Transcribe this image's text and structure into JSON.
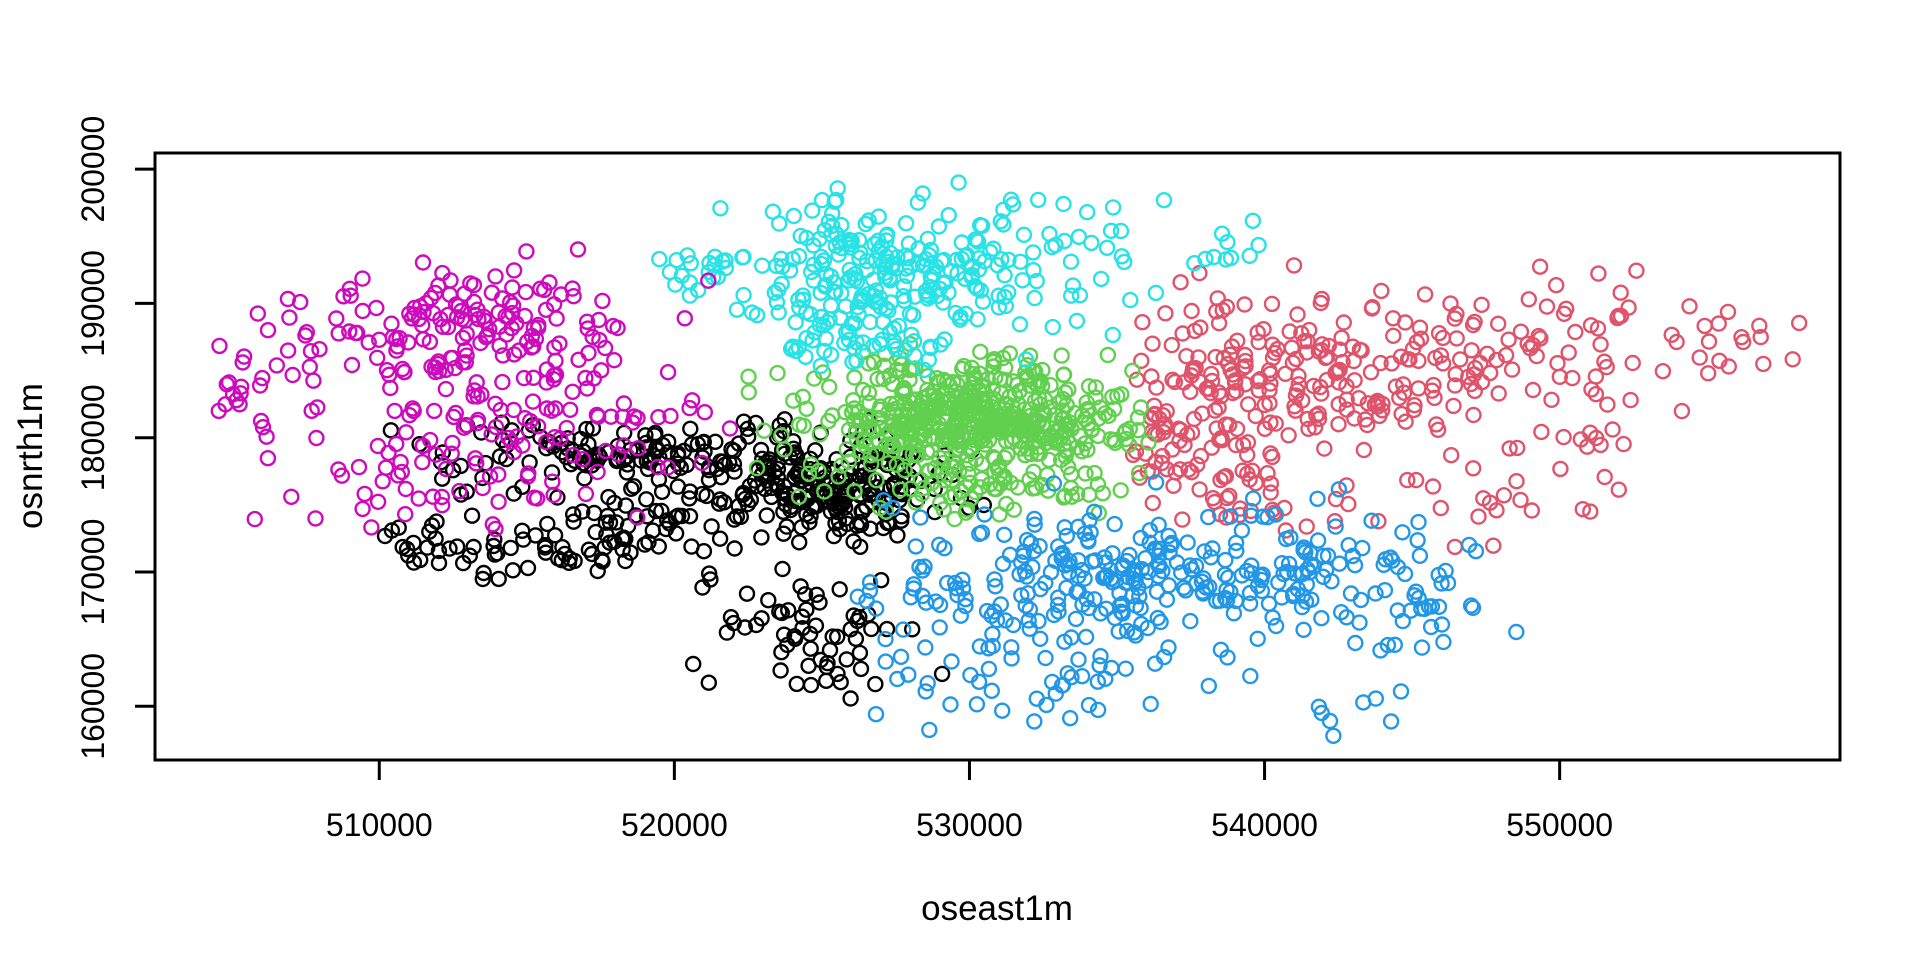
{
  "figure": {
    "title": "",
    "xlabel": "oseast1m",
    "ylabel": "osnrth1m"
  },
  "chart_data": {
    "type": "scatter",
    "title": "",
    "xlabel": "oseast1m",
    "ylabel": "osnrth1m",
    "xlim": [
      502400,
      559500
    ],
    "ylim": [
      156000,
      201200
    ],
    "x_ticks": [
      510000,
      520000,
      530000,
      540000,
      550000
    ],
    "y_ticks": [
      160000,
      170000,
      180000,
      190000,
      200000
    ],
    "grid": false,
    "legend": null,
    "background": "#ffffff",
    "axis_color": "#000000",
    "marker": {
      "shape": "open-circle",
      "radius_px": 7,
      "stroke_px": 2.4
    },
    "seed": 7,
    "clusters": [
      {
        "name": "black",
        "color": "#000000",
        "count": 503,
        "approx_center": [
          521500,
          173500
        ],
        "x_range": [
          509300,
          530500
        ],
        "y_range": [
          159800,
          181500
        ],
        "clamp": {
          "xmin": 509300,
          "xmax": 530500,
          "ymin": 159800,
          "ymax": 181500
        },
        "blobs": [
          {
            "c": [
              519500,
              178800
            ],
            "s": [
              3500,
              1500
            ],
            "n": 140
          },
          {
            "c": [
              525600,
              176400
            ],
            "s": [
              1700,
              2000
            ],
            "n": 185
          },
          {
            "c": [
              515800,
              172300
            ],
            "s": [
              2500,
              1700
            ],
            "n": 70
          },
          {
            "c": [
              520500,
              173600
            ],
            "s": [
              2200,
              1500
            ],
            "n": 40
          },
          {
            "c": [
              524000,
              165800
            ],
            "s": [
              1700,
              2500
            ],
            "n": 60
          },
          {
            "c": [
              511300,
              172800
            ],
            "s": [
              900,
              600
            ],
            "n": 8
          }
        ]
      },
      {
        "name": "red",
        "color": "#DF536B",
        "count": 392,
        "approx_center": [
          543500,
          183500
        ],
        "x_range": [
          535500,
          558400
        ],
        "y_range": [
          171800,
          194500
        ],
        "clamp": {
          "xmin": 535500,
          "xmax": 558400,
          "ymin": 171800,
          "ymax": 194500
        },
        "blobs": [
          {
            "c": [
              537700,
              182200
            ],
            "s": [
              1400,
              3300
            ],
            "n": 115
          },
          {
            "c": [
              542500,
              185200
            ],
            "s": [
              2700,
              3000
            ],
            "n": 140
          },
          {
            "c": [
              549500,
              185800
            ],
            "s": [
              3300,
              3200
            ],
            "n": 80
          },
          {
            "c": [
              556200,
              187600
            ],
            "s": [
              1400,
              1700
            ],
            "n": 15
          },
          {
            "c": [
              540800,
              174900
            ],
            "s": [
              1600,
              1600
            ],
            "n": 20
          },
          {
            "c": [
              548000,
              176200
            ],
            "s": [
              2300,
              2000
            ],
            "n": 22
          }
        ]
      },
      {
        "name": "green",
        "color": "#61D04F",
        "count": 580,
        "approx_center": [
          530000,
          181000
        ],
        "x_range": [
          522300,
          536600
        ],
        "y_range": [
          173900,
          187200
        ],
        "clamp": {
          "xmin": 522300,
          "xmax": 536600,
          "ymin": 173900,
          "ymax": 187200
        },
        "blobs": [
          {
            "c": [
              530200,
              181300
            ],
            "s": [
              2300,
              1300
            ],
            "n": 320
          },
          {
            "c": [
              529700,
              181000
            ],
            "s": [
              3400,
              2500
            ],
            "n": 130
          },
          {
            "c": [
              530500,
              176800
            ],
            "s": [
              2600,
              1300
            ],
            "n": 75
          },
          {
            "c": [
              529500,
              184800
            ],
            "s": [
              2500,
              1100
            ],
            "n": 55
          }
        ]
      },
      {
        "name": "blue",
        "color": "#2297E6",
        "count": 386,
        "approx_center": [
          536000,
          168500
        ],
        "x_range": [
          525900,
          548700
        ],
        "y_range": [
          156600,
          177300
        ],
        "clamp": {
          "xmin": 525900,
          "xmax": 548700,
          "ymin": 156600,
          "ymax": 177300
        },
        "blobs": [
          {
            "c": [
              534800,
              169600
            ],
            "s": [
              2500,
              2300
            ],
            "n": 165
          },
          {
            "c": [
              540800,
              169800
            ],
            "s": [
              2600,
              2500
            ],
            "n": 95
          },
          {
            "c": [
              545400,
              168600
            ],
            "s": [
              1200,
              2600
            ],
            "n": 30
          },
          {
            "c": [
              532500,
              162300
            ],
            "s": [
              2800,
              2100
            ],
            "n": 50
          },
          {
            "c": [
              529000,
              168800
            ],
            "s": [
              1500,
              2900
            ],
            "n": 40
          },
          {
            "c": [
              542800,
              159600
            ],
            "s": [
              1200,
              1100
            ],
            "n": 6
          }
        ]
      },
      {
        "name": "cyan",
        "color": "#28E2E5",
        "count": 327,
        "approx_center": [
          527500,
          191500
        ],
        "x_range": [
          519000,
          539800
        ],
        "y_range": [
          184300,
          199900
        ],
        "clamp": {
          "xmin": 519000,
          "xmax": 539800,
          "ymin": 184300,
          "ymax": 199900
        },
        "blobs": [
          {
            "c": [
              527000,
              192000
            ],
            "s": [
              2300,
              2600
            ],
            "n": 185
          },
          {
            "c": [
              526000,
              187600
            ],
            "s": [
              1500,
              1200
            ],
            "n": 40
          },
          {
            "c": [
              532000,
              193000
            ],
            "s": [
              2500,
              2700
            ],
            "n": 60
          },
          {
            "c": [
              538800,
              193800
            ],
            "s": [
              800,
              1000
            ],
            "n": 10
          },
          {
            "c": [
              520300,
              192300
            ],
            "s": [
              900,
              1500
            ],
            "n": 20
          },
          {
            "c": [
              531000,
              197500
            ],
            "s": [
              2500,
              1200
            ],
            "n": 12
          }
        ]
      },
      {
        "name": "magenta",
        "color": "#CD0BBC",
        "count": 305,
        "approx_center": [
          512800,
          185000
        ],
        "x_range": [
          504300,
          522400
        ],
        "y_range": [
          172300,
          194300
        ],
        "clamp": {
          "xmin": 504300,
          "xmax": 522400,
          "ymin": 172300,
          "ymax": 194300
        },
        "blobs": [
          {
            "c": [
              512500,
              188600
            ],
            "s": [
              3100,
              2300
            ],
            "n": 150
          },
          {
            "c": [
              515300,
              182300
            ],
            "s": [
              3100,
              2400
            ],
            "n": 88
          },
          {
            "c": [
              511800,
              176600
            ],
            "s": [
              2600,
              1800
            ],
            "n": 45
          },
          {
            "c": [
              505900,
              183600
            ],
            "s": [
              1100,
              2100
            ],
            "n": 22
          }
        ]
      }
    ]
  }
}
